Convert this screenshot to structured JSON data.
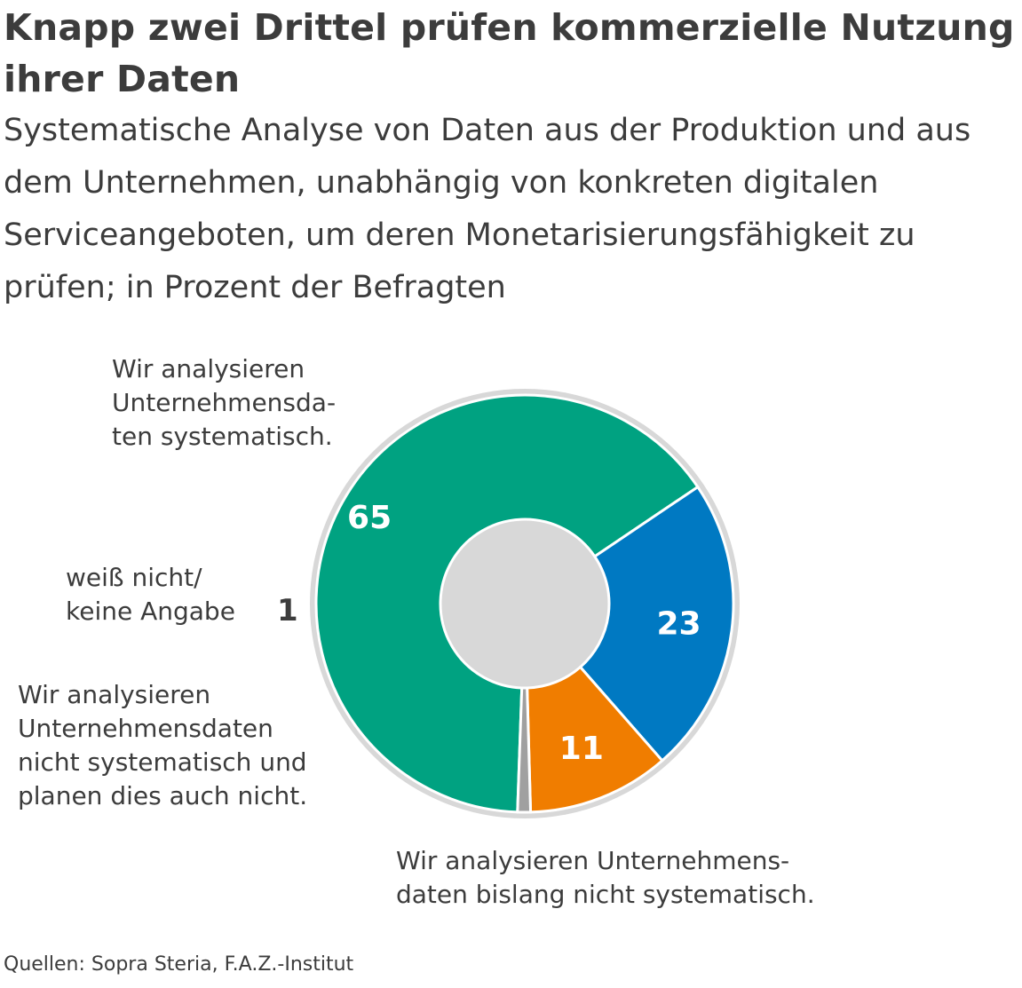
{
  "header": {
    "title": "Knapp zwei Drittel prüfen kommerzielle Nutzung ihrer Daten",
    "subtitle": "Systematische Analyse von Daten aus der Produktion und aus dem Unternehmen, unabhängig von konkreten digitalen Serviceangeboten, um deren Monetarisierungsfähigkeit zu prüfen; in Prozent der Befragten"
  },
  "source": "Quellen: Sopra Steria, F.A.Z.-Institut",
  "chart_data": {
    "type": "pie",
    "title": "Knapp zwei Drittel prüfen kommerzielle Nutzung ihrer Daten",
    "subtitle": "Systematische Analyse von Daten aus der Produktion und aus dem Unternehmen, unabhängig von konkreten digitalen Serviceangeboten, um deren Monetarisierungsfähigkeit zu prüfen; in Prozent der Befragten",
    "donut": true,
    "unit": "Prozent",
    "slices": [
      {
        "label": "Wir analysieren Unternehmensdaten systematisch.",
        "label_display": "Wir analysieren\nUnternehmensda-\nten systematisch.",
        "value": 65,
        "value_label": "65",
        "color": "#00a281"
      },
      {
        "label": "Wir analysieren Unternehmensdaten bislang nicht systematisch.",
        "label_display": "Wir analysieren Unternehmens-\ndaten bislang nicht systematisch.",
        "value": 23,
        "value_label": "23",
        "color": "#0079c2"
      },
      {
        "label": "Wir analysieren Unternehmensdaten nicht systematisch und planen dies auch nicht.",
        "label_display": "Wir analysieren\nUnternehmensdaten\nnicht systematisch und\nplanen dies auch nicht.",
        "value": 11,
        "value_label": "11",
        "color": "#f07d00"
      },
      {
        "label": "weiß nicht/ keine Angabe",
        "label_display": "weiß nicht/\nkeine Angabe",
        "value": 1,
        "value_label": "1",
        "color": "#a0a0a0"
      }
    ]
  }
}
